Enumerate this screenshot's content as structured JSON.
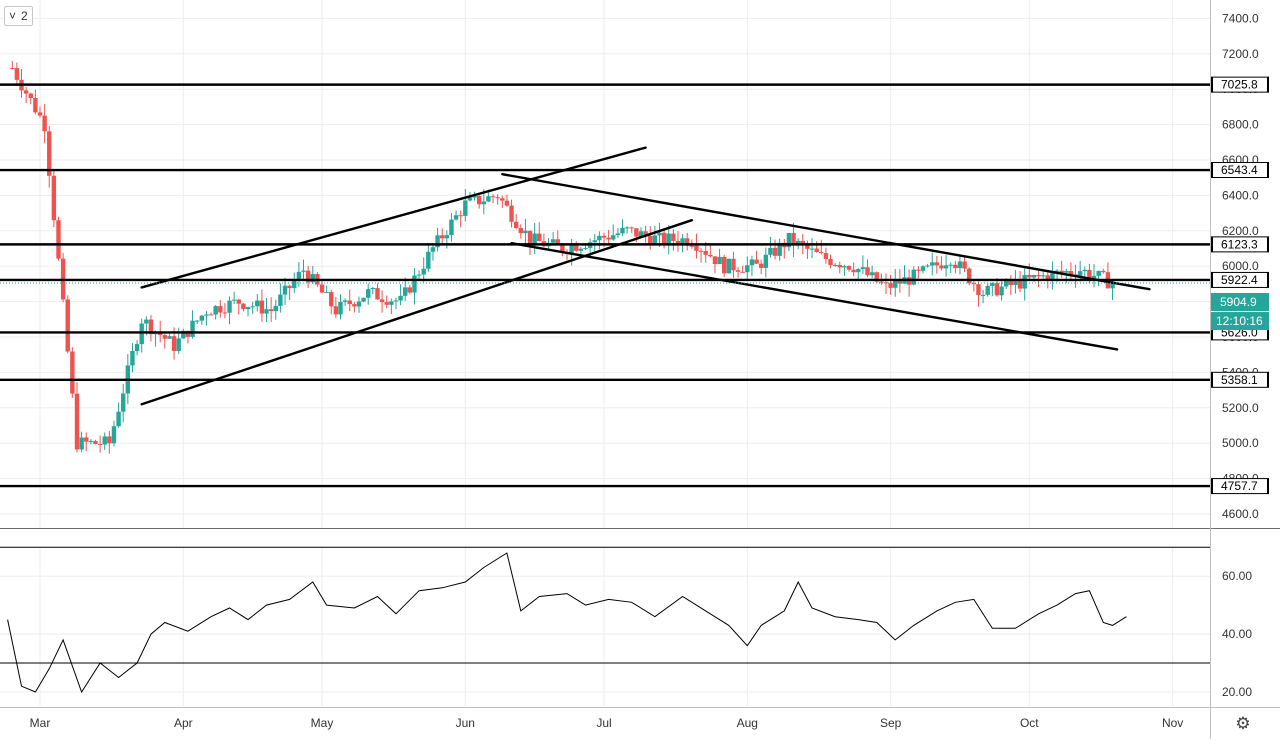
{
  "toolbar": {
    "collapse_icon": "chevron-down-icon",
    "collapse_glyph": "˅",
    "legend_count": "2"
  },
  "settings_icon": "gear-icon",
  "colors": {
    "up": "#26a69a",
    "down": "#ef5350",
    "price_badge": "#26a69a",
    "level_badge": "#000000"
  },
  "chart_data": [
    {
      "type": "candlestick",
      "x_labels": [
        "Mar",
        "Apr",
        "May",
        "Jun",
        "Jul",
        "Aug",
        "Sep",
        "Oct",
        "Nov"
      ],
      "price_ticks": [
        "7400.0",
        "7200.0",
        "7000.0",
        "6800.0",
        "6600.0",
        "6400.0",
        "6200.0",
        "6000.0",
        "5800.0",
        "5600.0",
        "5400.0",
        "5200.0",
        "5000.0",
        "4800.0",
        "4600.0"
      ],
      "ylim": [
        4490,
        7480
      ],
      "horizontal_levels": [
        {
          "value": 7025.8,
          "label": "7025.8"
        },
        {
          "value": 6543.4,
          "label": "6543.4"
        },
        {
          "value": 6123.3,
          "label": "6123.3"
        },
        {
          "value": 5922.4,
          "label": "5922.4"
        },
        {
          "value": 5626.0,
          "label": "5626.0"
        },
        {
          "value": 5358.1,
          "label": "5358.1"
        },
        {
          "value": 4757.7,
          "label": "4757.7"
        }
      ],
      "current_price": {
        "value": 5904.9,
        "label": "5904.9"
      },
      "countdown": "12:10:16",
      "trendlines": [
        {
          "from": [
            "2020-03-23",
            5880
          ],
          "to": [
            "2020-07-10",
            6670
          ]
        },
        {
          "from": [
            "2020-03-23",
            5220
          ],
          "to": [
            "2020-07-20",
            6260
          ]
        },
        {
          "from": [
            "2020-06-09",
            6520
          ],
          "to": [
            "2020-10-27",
            5870
          ]
        },
        {
          "from": [
            "2020-06-11",
            6130
          ],
          "to": [
            "2020-10-20",
            5530
          ]
        }
      ],
      "weekly_closes": [
        {
          "date": "2020-02-24",
          "close": 7120
        },
        {
          "date": "2020-03-02",
          "close": 6800
        },
        {
          "date": "2020-03-09",
          "close": 5000
        },
        {
          "date": "2020-03-16",
          "close": 5000
        },
        {
          "date": "2020-03-23",
          "close": 5700
        },
        {
          "date": "2020-03-30",
          "close": 5550
        },
        {
          "date": "2020-04-06",
          "close": 5750
        },
        {
          "date": "2020-04-13",
          "close": 5800
        },
        {
          "date": "2020-04-20",
          "close": 5750
        },
        {
          "date": "2020-04-27",
          "close": 5980
        },
        {
          "date": "2020-05-04",
          "close": 5750
        },
        {
          "date": "2020-05-11",
          "close": 5850
        },
        {
          "date": "2020-05-18",
          "close": 5800
        },
        {
          "date": "2020-05-25",
          "close": 6100
        },
        {
          "date": "2020-06-01",
          "close": 6350
        },
        {
          "date": "2020-06-08",
          "close": 6400
        },
        {
          "date": "2020-06-15",
          "close": 6150
        },
        {
          "date": "2020-06-22",
          "close": 6100
        },
        {
          "date": "2020-06-29",
          "close": 6150
        },
        {
          "date": "2020-07-06",
          "close": 6200
        },
        {
          "date": "2020-07-13",
          "close": 6150
        },
        {
          "date": "2020-07-20",
          "close": 6150
        },
        {
          "date": "2020-07-27",
          "close": 6000
        },
        {
          "date": "2020-08-03",
          "close": 6000
        },
        {
          "date": "2020-08-10",
          "close": 6150
        },
        {
          "date": "2020-08-17",
          "close": 6050
        },
        {
          "date": "2020-08-24",
          "close": 6000
        },
        {
          "date": "2020-08-31",
          "close": 5880
        },
        {
          "date": "2020-09-07",
          "close": 5950
        },
        {
          "date": "2020-09-14",
          "close": 6050
        },
        {
          "date": "2020-09-21",
          "close": 5850
        },
        {
          "date": "2020-09-28",
          "close": 5900
        },
        {
          "date": "2020-10-05",
          "close": 5950
        },
        {
          "date": "2020-10-12",
          "close": 5980
        },
        {
          "date": "2020-10-19",
          "close": 5904.9
        }
      ]
    },
    {
      "type": "line",
      "y_ticks": [
        "60.00",
        "40.00",
        "20.00"
      ],
      "ylim": [
        15,
        75
      ],
      "upper_band": 70,
      "lower_band": 30,
      "points": [
        [
          "2020-02-23",
          45
        ],
        [
          "2020-02-26",
          22
        ],
        [
          "2020-02-29",
          20
        ],
        [
          "2020-03-03",
          28
        ],
        [
          "2020-03-06",
          38
        ],
        [
          "2020-03-10",
          20
        ],
        [
          "2020-03-14",
          30
        ],
        [
          "2020-03-18",
          25
        ],
        [
          "2020-03-22",
          30
        ],
        [
          "2020-03-25",
          40
        ],
        [
          "2020-03-28",
          44
        ],
        [
          "2020-04-02",
          41
        ],
        [
          "2020-04-07",
          46
        ],
        [
          "2020-04-11",
          49
        ],
        [
          "2020-04-15",
          45
        ],
        [
          "2020-04-19",
          50
        ],
        [
          "2020-04-24",
          52
        ],
        [
          "2020-04-29",
          58
        ],
        [
          "2020-05-02",
          50
        ],
        [
          "2020-05-08",
          49
        ],
        [
          "2020-05-13",
          53
        ],
        [
          "2020-05-17",
          47
        ],
        [
          "2020-05-22",
          55
        ],
        [
          "2020-05-27",
          56
        ],
        [
          "2020-06-01",
          58
        ],
        [
          "2020-06-05",
          63
        ],
        [
          "2020-06-10",
          68
        ],
        [
          "2020-06-13",
          48
        ],
        [
          "2020-06-17",
          53
        ],
        [
          "2020-06-23",
          54
        ],
        [
          "2020-06-27",
          50
        ],
        [
          "2020-07-02",
          52
        ],
        [
          "2020-07-07",
          51
        ],
        [
          "2020-07-12",
          46
        ],
        [
          "2020-07-18",
          53
        ],
        [
          "2020-07-23",
          48
        ],
        [
          "2020-07-28",
          43
        ],
        [
          "2020-08-01",
          36
        ],
        [
          "2020-08-04",
          43
        ],
        [
          "2020-08-09",
          48
        ],
        [
          "2020-08-12",
          58
        ],
        [
          "2020-08-15",
          49
        ],
        [
          "2020-08-20",
          46
        ],
        [
          "2020-08-25",
          45
        ],
        [
          "2020-08-29",
          44
        ],
        [
          "2020-09-02",
          38
        ],
        [
          "2020-09-06",
          43
        ],
        [
          "2020-09-11",
          48
        ],
        [
          "2020-09-15",
          51
        ],
        [
          "2020-09-19",
          52
        ],
        [
          "2020-09-23",
          42
        ],
        [
          "2020-09-28",
          42
        ],
        [
          "2020-10-03",
          47
        ],
        [
          "2020-10-07",
          50
        ],
        [
          "2020-10-11",
          54
        ],
        [
          "2020-10-14",
          55
        ],
        [
          "2020-10-17",
          44
        ],
        [
          "2020-10-19",
          43
        ],
        [
          "2020-10-22",
          46
        ]
      ]
    }
  ]
}
